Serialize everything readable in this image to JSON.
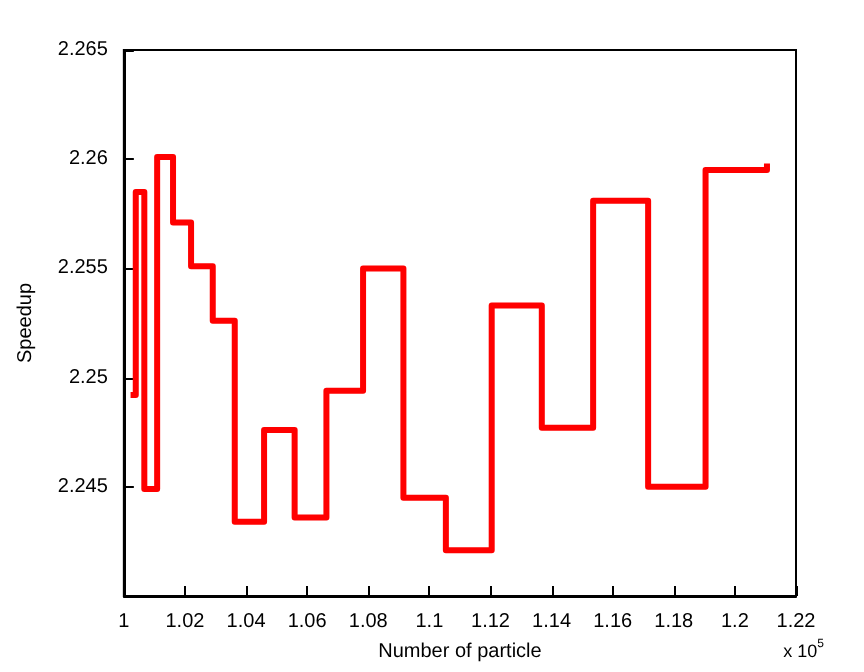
{
  "chart_data": {
    "type": "step",
    "xlabel": "Number of particle",
    "ylabel": "Speedup",
    "annotations": [
      "x 10$^{5}$"
    ],
    "x": [
      1.0022,
      1.0039,
      1.0067,
      1.0109,
      1.0161,
      1.022,
      1.0291,
      1.0363,
      1.0459,
      1.0559,
      1.0663,
      1.0783,
      1.0915,
      1.1054,
      1.1204,
      1.1368,
      1.1536,
      1.1716,
      1.1904,
      1.2105
    ],
    "series": [
      {
        "color": "#ff0000",
        "values": [
          2.2492,
          2.2585,
          2.2449,
          2.2601,
          2.2571,
          2.2551,
          2.2526,
          2.2434,
          2.2476,
          2.2436,
          2.2494,
          2.255,
          2.2445,
          2.2421,
          2.2533,
          2.2477,
          2.2581,
          2.245,
          2.2595,
          2.2598
        ]
      }
    ],
    "xlim": [
      1,
      1.22
    ],
    "xticks": [
      1,
      1.02,
      1.04,
      1.06,
      1.08,
      1.1,
      1.12,
      1.14,
      1.16,
      1.18,
      1.2,
      1.22
    ],
    "ylim": [
      2.24,
      2.265
    ],
    "yticks": [
      2.245,
      2.25,
      2.255,
      2.26,
      2.265
    ],
    "grid": false,
    "marker": "none",
    "line_style": "solid"
  }
}
